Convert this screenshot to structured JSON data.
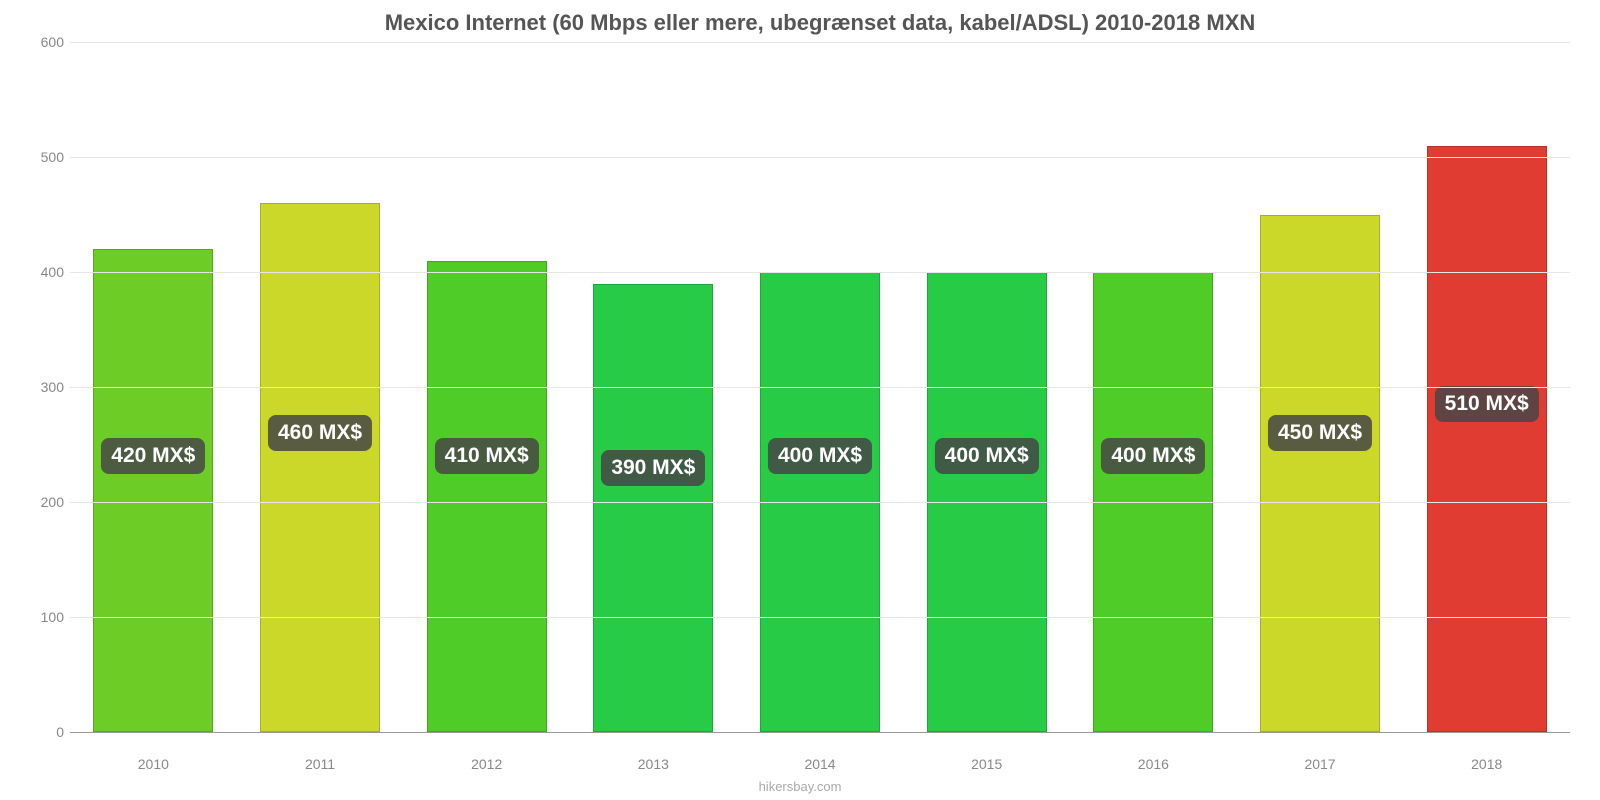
{
  "chart": {
    "type": "bar",
    "title": "Mexico Internet (60 Mbps eller mere, ubegrænset data, kabel/ADSL) 2010-2018 MXN",
    "title_fontsize": 22,
    "title_color": "#555555",
    "source": "hikersbay.com",
    "background_color": "#ffffff",
    "grid_color": "#e6e6e6",
    "axis_label_color": "#888888",
    "axis_fontsize": 14,
    "ylim": [
      0,
      600
    ],
    "ytick_step": 100,
    "yticks": [
      0,
      100,
      200,
      300,
      400,
      500,
      600
    ],
    "bar_width_pct": 72,
    "bar_label_fontsize": 21,
    "bar_label_color": "#ffffff",
    "bar_label_bg": "rgba(70,70,70,0.85)",
    "categories": [
      "2010",
      "2011",
      "2012",
      "2013",
      "2014",
      "2015",
      "2016",
      "2017",
      "2018"
    ],
    "values": [
      420,
      460,
      410,
      390,
      400,
      400,
      400,
      450,
      510
    ],
    "display_labels": [
      "420 MX$",
      "460 MX$",
      "410 MX$",
      "390 MX$",
      "400 MX$",
      "400 MX$",
      "400 MX$",
      "450 MX$",
      "510 MX$"
    ],
    "bar_colors": [
      "#6ecc27",
      "#cbd82a",
      "#4fcc27",
      "#27cb45",
      "#27cb45",
      "#27cb45",
      "#4fcc27",
      "#cbd82a",
      "#e03c31"
    ],
    "label_y_values": [
      240,
      260,
      240,
      230,
      240,
      240,
      240,
      260,
      285
    ]
  }
}
